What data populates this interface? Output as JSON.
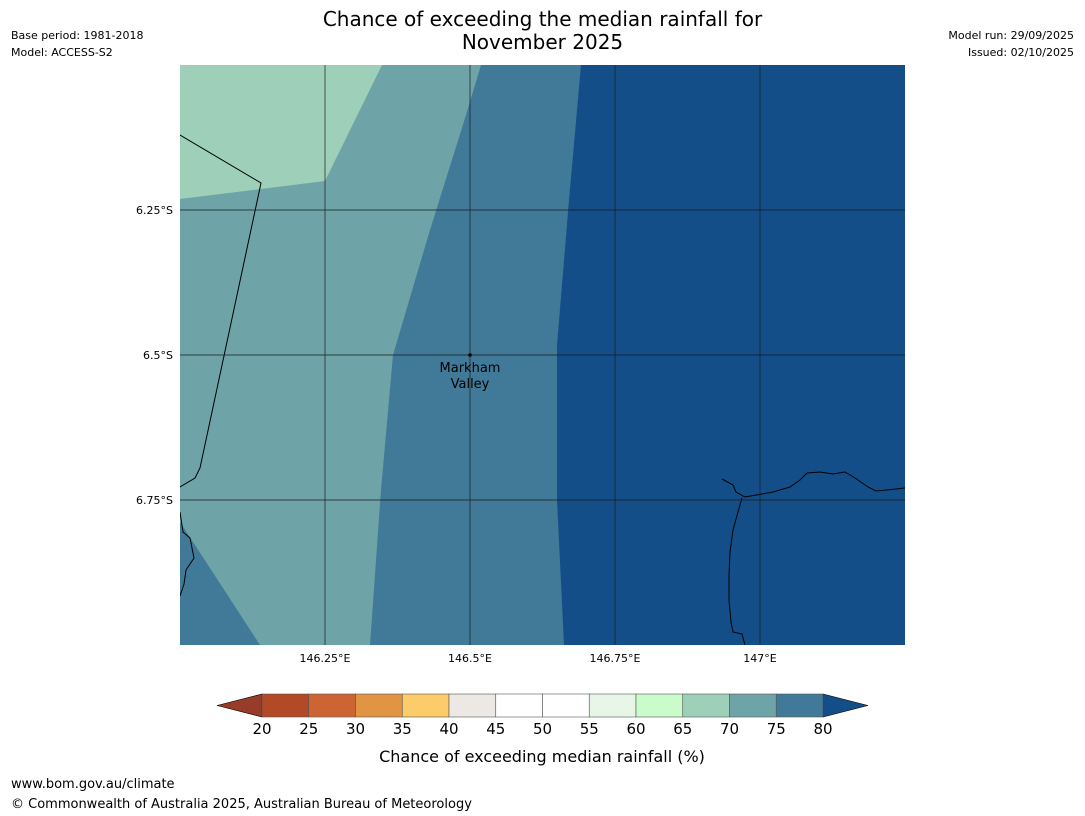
{
  "header": {
    "title_line1": "Chance of exceeding the median rainfall for",
    "title_line2": "November 2025",
    "base_period": "Base period: 1981-2018",
    "model": "Model: ACCESS-S2",
    "model_run": "Model run: 29/09/2025",
    "issued": "Issued: 02/10/2025"
  },
  "map": {
    "lat_labels": [
      "6.25°S",
      "6.5°S",
      "6.75°S"
    ],
    "lon_labels": [
      "146.25°E",
      "146.5°E",
      "146.75°E",
      "147°E"
    ],
    "place": {
      "name_line1": "Markham",
      "name_line2": "Valley",
      "lon": 146.5,
      "lat": -6.5
    },
    "extent": {
      "lon_min": 146.0,
      "lon_max": 147.25,
      "lat_min": -7.0,
      "lat_max": -6.0
    },
    "zone_colors": {
      "65-70": "#9ecfb8",
      "70-75": "#6ea3a7",
      "75-80": "#417a98",
      "80+": "#144e88"
    }
  },
  "colorbar": {
    "label": "Chance of exceeding median rainfall (%)",
    "ticks": [
      "20",
      "25",
      "30",
      "35",
      "40",
      "45",
      "50",
      "55",
      "60",
      "65",
      "70",
      "75",
      "80"
    ],
    "under_color": "#963c28",
    "over_color": "#144e88",
    "colors": [
      "#b34a27",
      "#cc6434",
      "#e29445",
      "#fdcc6a",
      "#ece8e3",
      "#ffffff",
      "#ffffff",
      "#e7f6e7",
      "#c9fbcb",
      "#9ecfb8",
      "#6ea3a7",
      "#417a98"
    ]
  },
  "footer": {
    "url": "www.bom.gov.au/climate",
    "copyright": "© Commonwealth of Australia 2025, Australian Bureau of Meteorology"
  }
}
